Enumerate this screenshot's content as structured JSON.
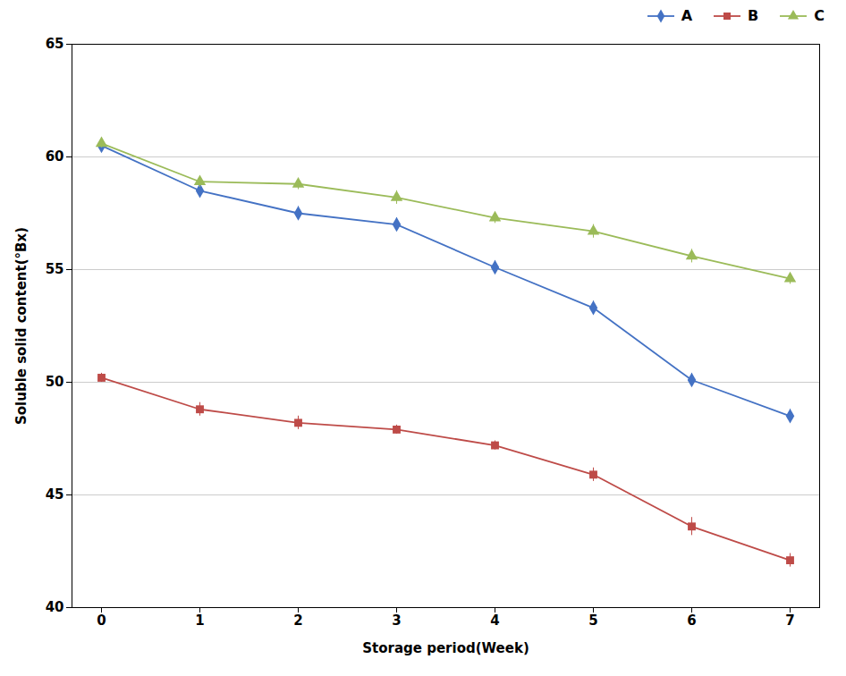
{
  "chart_data": {
    "type": "line",
    "x": [
      0,
      1,
      2,
      3,
      4,
      5,
      6,
      7
    ],
    "series": [
      {
        "name": "A",
        "color": "#4472C4",
        "marker": "diamond",
        "values": [
          60.5,
          58.5,
          57.5,
          57.0,
          55.1,
          53.3,
          50.1,
          48.5
        ],
        "errors": [
          0.3,
          0.3,
          0.3,
          0.3,
          0.3,
          0.3,
          0.3,
          0.3
        ]
      },
      {
        "name": "B",
        "color": "#BE4B48",
        "marker": "square",
        "values": [
          50.2,
          48.8,
          48.2,
          47.9,
          47.2,
          45.9,
          43.6,
          42.1
        ],
        "errors": [
          0.2,
          0.3,
          0.3,
          0.2,
          0.2,
          0.3,
          0.4,
          0.3
        ]
      },
      {
        "name": "C",
        "color": "#9BBB59",
        "marker": "triangle",
        "values": [
          60.6,
          58.9,
          58.8,
          58.2,
          57.3,
          56.7,
          55.6,
          54.6
        ],
        "errors": [
          0.2,
          0.25,
          0.25,
          0.3,
          0.25,
          0.3,
          0.3,
          0.25
        ]
      }
    ],
    "xlabel": "Storage period(Week)",
    "ylabel": "Soluble solid content(°Bx)",
    "xlim": [
      -0.3,
      7.3
    ],
    "xticks": [
      0,
      1,
      2,
      3,
      4,
      5,
      6,
      7
    ],
    "ylim": [
      40,
      65
    ],
    "yticks": [
      40,
      45,
      50,
      55,
      60,
      65
    ],
    "grid": "y",
    "legend": "upper right"
  }
}
